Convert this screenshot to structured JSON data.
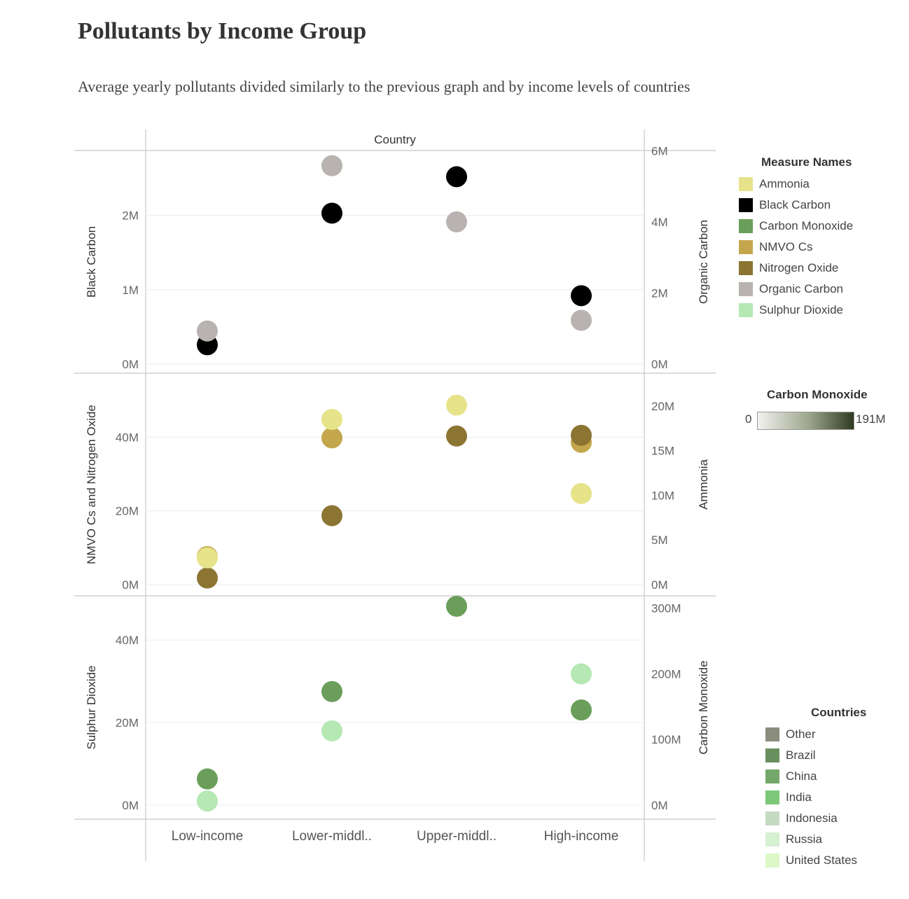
{
  "title": "Pollutants by Income Group",
  "subtitle": "Average yearly pollutants divided similarly to the previous graph and by income levels of countries",
  "column_header": "Country",
  "legends": {
    "measure_names": {
      "title": "Measure Names",
      "items": [
        {
          "label": "Ammonia",
          "color": "#e6e38a"
        },
        {
          "label": "Black Carbon",
          "color": "#000000"
        },
        {
          "label": "Carbon Monoxide",
          "color": "#6a9e5a"
        },
        {
          "label": "NMVO Cs",
          "color": "#c4a64c"
        },
        {
          "label": "Nitrogen Oxide",
          "color": "#8c7533"
        },
        {
          "label": "Organic Carbon",
          "color": "#b8b2b0"
        },
        {
          "label": "Sulphur Dioxide",
          "color": "#b5e8b3"
        }
      ]
    },
    "carbon_monoxide_scale": {
      "title": "Carbon Monoxide",
      "min_label": "0",
      "max_label": "191M",
      "colors": [
        "#f2f2ee",
        "#2f3a22"
      ]
    },
    "countries": {
      "title": "Countries",
      "items": [
        {
          "label": "Other",
          "color": "#8a8c7e"
        },
        {
          "label": "Brazil",
          "color": "#6a8f5e"
        },
        {
          "label": "China",
          "color": "#74a86a"
        },
        {
          "label": "India",
          "color": "#7cc878"
        },
        {
          "label": "Indonesia",
          "color": "#c5d9c0"
        },
        {
          "label": "Russia",
          "color": "#d6f0d2"
        },
        {
          "label": "United States",
          "color": "#dcf7c8"
        }
      ]
    }
  },
  "chart_data": {
    "type": "scatter",
    "categories": [
      "Low-income",
      "Lower-middl..",
      "Upper-middl..",
      "High-income"
    ],
    "panels": [
      {
        "left_axis": {
          "label": "Black Carbon",
          "ticks": [
            "0M",
            "1M",
            "2M"
          ],
          "tick_values": [
            0,
            1000000,
            2000000
          ],
          "range": [
            0,
            2750000
          ]
        },
        "right_axis": {
          "label": "Organic Carbon",
          "ticks": [
            "0M",
            "2M",
            "4M",
            "6M"
          ],
          "tick_values": [
            0,
            2000000,
            4000000,
            6000000
          ],
          "range": [
            0,
            5750000
          ]
        },
        "series": [
          {
            "name": "Black Carbon",
            "axis": "left",
            "color": "#000000",
            "values": [
              260000,
              2030000,
              2520000,
              920000
            ]
          },
          {
            "name": "Organic Carbon",
            "axis": "right",
            "color": "#b8b2b0",
            "values": [
              930000,
              5580000,
              4000000,
              1230000
            ]
          }
        ]
      },
      {
        "left_axis": {
          "label": "NMVO Cs and Nitrogen Oxide",
          "ticks": [
            "0M",
            "20M",
            "40M"
          ],
          "tick_values": [
            0,
            20000000,
            40000000
          ],
          "range": [
            0,
            54500000
          ]
        },
        "right_axis": {
          "label": "Ammonia",
          "ticks": [
            "0M",
            "5M",
            "10M",
            "15M",
            "20M"
          ],
          "tick_values": [
            0,
            5000000,
            10000000,
            15000000,
            20000000
          ],
          "range": [
            0,
            22500000
          ]
        },
        "series": [
          {
            "name": "NMVO Cs",
            "axis": "left",
            "color": "#c4a64c",
            "values": [
              7600000,
              39800000,
              null,
              38600000
            ]
          },
          {
            "name": "Nitrogen Oxide",
            "axis": "left",
            "color": "#8c7533",
            "values": [
              1800000,
              18700000,
              40300000,
              40500000
            ]
          },
          {
            "name": "Ammonia",
            "axis": "right",
            "color": "#e6e38a",
            "values": [
              3000000,
              18500000,
              20100000,
              10200000
            ]
          }
        ]
      },
      {
        "left_axis": {
          "label": "Sulphur Dioxide",
          "ticks": [
            "0M",
            "20M",
            "40M"
          ],
          "tick_values": [
            0,
            20000000,
            40000000
          ],
          "range": [
            0,
            48500000
          ]
        },
        "right_axis": {
          "label": "Carbon Monoxide",
          "ticks": [
            "0M",
            "100M",
            "200M",
            "300M"
          ],
          "tick_values": [
            0,
            100000000,
            200000000,
            300000000
          ],
          "range": [
            0,
            305000000
          ]
        },
        "series": [
          {
            "name": "Sulphur Dioxide",
            "axis": "left",
            "color": "#b5e8b3",
            "values": [
              1000000,
              18000000,
              null,
              31800000
            ]
          },
          {
            "name": "Carbon Monoxide",
            "axis": "right",
            "color": "#6a9e5a",
            "values": [
              40000000,
              173000000,
              303000000,
              145000000
            ]
          }
        ]
      }
    ],
    "grid": true
  }
}
